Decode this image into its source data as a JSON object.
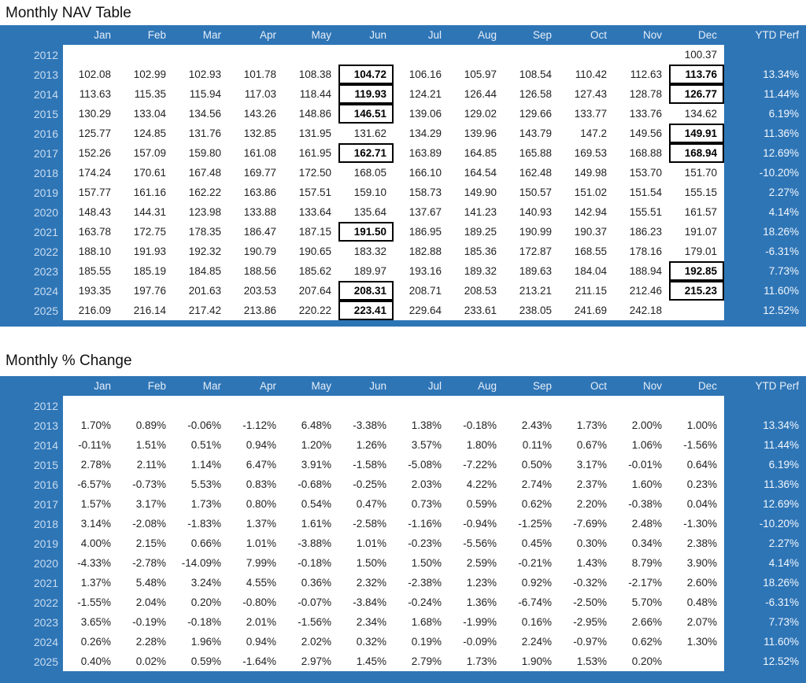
{
  "colors": {
    "accent_blue": "#2E75B6",
    "header_text": "#E6EEF7",
    "year_text": "#C8DCEF",
    "ytd_text": "#F2F7FC",
    "cell_text": "#212121",
    "box_border": "#000000"
  },
  "chart_data": [
    {
      "type": "table",
      "title": "Monthly NAV Table",
      "months": [
        "Jan",
        "Feb",
        "Mar",
        "Apr",
        "May",
        "Jun",
        "Jul",
        "Aug",
        "Sep",
        "Oct",
        "Nov",
        "Dec"
      ],
      "ytd_label": "YTD Perf",
      "rows": [
        {
          "year": "2012",
          "values": [
            "",
            "",
            "",
            "",
            "",
            "",
            "",
            "",
            "",
            "",
            "",
            "100.37"
          ],
          "ytd": "",
          "boxed": []
        },
        {
          "year": "2013",
          "values": [
            "102.08",
            "102.99",
            "102.93",
            "101.78",
            "108.38",
            "104.72",
            "106.16",
            "105.97",
            "108.54",
            "110.42",
            "112.63",
            "113.76"
          ],
          "ytd": "13.34%",
          "boxed": [
            5,
            11
          ]
        },
        {
          "year": "2014",
          "values": [
            "113.63",
            "115.35",
            "115.94",
            "117.03",
            "118.44",
            "119.93",
            "124.21",
            "126.44",
            "126.58",
            "127.43",
            "128.78",
            "126.77"
          ],
          "ytd": "11.44%",
          "boxed": [
            5,
            11
          ]
        },
        {
          "year": "2015",
          "values": [
            "130.29",
            "133.04",
            "134.56",
            "143.26",
            "148.86",
            "146.51",
            "139.06",
            "129.02",
            "129.66",
            "133.77",
            "133.76",
            "134.62"
          ],
          "ytd": "6.19%",
          "boxed": [
            5
          ]
        },
        {
          "year": "2016",
          "values": [
            "125.77",
            "124.85",
            "131.76",
            "132.85",
            "131.95",
            "131.62",
            "134.29",
            "139.96",
            "143.79",
            "147.2",
            "149.56",
            "149.91"
          ],
          "ytd": "11.36%",
          "boxed": [
            11
          ]
        },
        {
          "year": "2017",
          "values": [
            "152.26",
            "157.09",
            "159.80",
            "161.08",
            "161.95",
            "162.71",
            "163.89",
            "164.85",
            "165.88",
            "169.53",
            "168.88",
            "168.94"
          ],
          "ytd": "12.69%",
          "boxed": [
            5,
            11
          ]
        },
        {
          "year": "2018",
          "values": [
            "174.24",
            "170.61",
            "167.48",
            "169.77",
            "172.50",
            "168.05",
            "166.10",
            "164.54",
            "162.48",
            "149.98",
            "153.70",
            "151.70"
          ],
          "ytd": "-10.20%",
          "boxed": []
        },
        {
          "year": "2019",
          "values": [
            "157.77",
            "161.16",
            "162.22",
            "163.86",
            "157.51",
            "159.10",
            "158.73",
            "149.90",
            "150.57",
            "151.02",
            "151.54",
            "155.15"
          ],
          "ytd": "2.27%",
          "boxed": []
        },
        {
          "year": "2020",
          "values": [
            "148.43",
            "144.31",
            "123.98",
            "133.88",
            "133.64",
            "135.64",
            "137.67",
            "141.23",
            "140.93",
            "142.94",
            "155.51",
            "161.57"
          ],
          "ytd": "4.14%",
          "boxed": []
        },
        {
          "year": "2021",
          "values": [
            "163.78",
            "172.75",
            "178.35",
            "186.47",
            "187.15",
            "191.50",
            "186.95",
            "189.25",
            "190.99",
            "190.37",
            "186.23",
            "191.07"
          ],
          "ytd": "18.26%",
          "boxed": [
            5
          ]
        },
        {
          "year": "2022",
          "values": [
            "188.10",
            "191.93",
            "192.32",
            "190.79",
            "190.65",
            "183.32",
            "182.88",
            "185.36",
            "172.87",
            "168.55",
            "178.16",
            "179.01"
          ],
          "ytd": "-6.31%",
          "boxed": []
        },
        {
          "year": "2023",
          "values": [
            "185.55",
            "185.19",
            "184.85",
            "188.56",
            "185.62",
            "189.97",
            "193.16",
            "189.32",
            "189.63",
            "184.04",
            "188.94",
            "192.85"
          ],
          "ytd": "7.73%",
          "boxed": [
            11
          ]
        },
        {
          "year": "2024",
          "values": [
            "193.35",
            "197.76",
            "201.63",
            "203.53",
            "207.64",
            "208.31",
            "208.71",
            "208.53",
            "213.21",
            "211.15",
            "212.46",
            "215.23"
          ],
          "ytd": "11.60%",
          "boxed": [
            5,
            11
          ]
        },
        {
          "year": "2025",
          "values": [
            "216.09",
            "216.14",
            "217.42",
            "213.86",
            "220.22",
            "223.41",
            "229.64",
            "233.61",
            "238.05",
            "241.69",
            "242.18",
            ""
          ],
          "ytd": "12.52%",
          "boxed": [
            5
          ]
        }
      ]
    },
    {
      "type": "table",
      "title": "Monthly % Change",
      "months": [
        "Jan",
        "Feb",
        "Mar",
        "Apr",
        "May",
        "Jun",
        "Jul",
        "Aug",
        "Sep",
        "Oct",
        "Nov",
        "Dec"
      ],
      "ytd_label": "YTD Perf",
      "rows": [
        {
          "year": "2012",
          "values": [
            "",
            "",
            "",
            "",
            "",
            "",
            "",
            "",
            "",
            "",
            "",
            ""
          ],
          "ytd": "",
          "boxed": []
        },
        {
          "year": "2013",
          "values": [
            "1.70%",
            "0.89%",
            "-0.06%",
            "-1.12%",
            "6.48%",
            "-3.38%",
            "1.38%",
            "-0.18%",
            "2.43%",
            "1.73%",
            "2.00%",
            "1.00%"
          ],
          "ytd": "13.34%",
          "boxed": []
        },
        {
          "year": "2014",
          "values": [
            "-0.11%",
            "1.51%",
            "0.51%",
            "0.94%",
            "1.20%",
            "1.26%",
            "3.57%",
            "1.80%",
            "0.11%",
            "0.67%",
            "1.06%",
            "-1.56%"
          ],
          "ytd": "11.44%",
          "boxed": []
        },
        {
          "year": "2015",
          "values": [
            "2.78%",
            "2.11%",
            "1.14%",
            "6.47%",
            "3.91%",
            "-1.58%",
            "-5.08%",
            "-7.22%",
            "0.50%",
            "3.17%",
            "-0.01%",
            "0.64%"
          ],
          "ytd": "6.19%",
          "boxed": []
        },
        {
          "year": "2016",
          "values": [
            "-6.57%",
            "-0.73%",
            "5.53%",
            "0.83%",
            "-0.68%",
            "-0.25%",
            "2.03%",
            "4.22%",
            "2.74%",
            "2.37%",
            "1.60%",
            "0.23%"
          ],
          "ytd": "11.36%",
          "boxed": []
        },
        {
          "year": "2017",
          "values": [
            "1.57%",
            "3.17%",
            "1.73%",
            "0.80%",
            "0.54%",
            "0.47%",
            "0.73%",
            "0.59%",
            "0.62%",
            "2.20%",
            "-0.38%",
            "0.04%"
          ],
          "ytd": "12.69%",
          "boxed": []
        },
        {
          "year": "2018",
          "values": [
            "3.14%",
            "-2.08%",
            "-1.83%",
            "1.37%",
            "1.61%",
            "-2.58%",
            "-1.16%",
            "-0.94%",
            "-1.25%",
            "-7.69%",
            "2.48%",
            "-1.30%"
          ],
          "ytd": "-10.20%",
          "boxed": []
        },
        {
          "year": "2019",
          "values": [
            "4.00%",
            "2.15%",
            "0.66%",
            "1.01%",
            "-3.88%",
            "1.01%",
            "-0.23%",
            "-5.56%",
            "0.45%",
            "0.30%",
            "0.34%",
            "2.38%"
          ],
          "ytd": "2.27%",
          "boxed": []
        },
        {
          "year": "2020",
          "values": [
            "-4.33%",
            "-2.78%",
            "-14.09%",
            "7.99%",
            "-0.18%",
            "1.50%",
            "1.50%",
            "2.59%",
            "-0.21%",
            "1.43%",
            "8.79%",
            "3.90%"
          ],
          "ytd": "4.14%",
          "boxed": []
        },
        {
          "year": "2021",
          "values": [
            "1.37%",
            "5.48%",
            "3.24%",
            "4.55%",
            "0.36%",
            "2.32%",
            "-2.38%",
            "1.23%",
            "0.92%",
            "-0.32%",
            "-2.17%",
            "2.60%"
          ],
          "ytd": "18.26%",
          "boxed": []
        },
        {
          "year": "2022",
          "values": [
            "-1.55%",
            "2.04%",
            "0.20%",
            "-0.80%",
            "-0.07%",
            "-3.84%",
            "-0.24%",
            "1.36%",
            "-6.74%",
            "-2.50%",
            "5.70%",
            "0.48%"
          ],
          "ytd": "-6.31%",
          "boxed": []
        },
        {
          "year": "2023",
          "values": [
            "3.65%",
            "-0.19%",
            "-0.18%",
            "2.01%",
            "-1.56%",
            "2.34%",
            "1.68%",
            "-1.99%",
            "0.16%",
            "-2.95%",
            "2.66%",
            "2.07%"
          ],
          "ytd": "7.73%",
          "boxed": []
        },
        {
          "year": "2024",
          "values": [
            "0.26%",
            "2.28%",
            "1.96%",
            "0.94%",
            "2.02%",
            "0.32%",
            "0.19%",
            "-0.09%",
            "2.24%",
            "-0.97%",
            "0.62%",
            "1.30%"
          ],
          "ytd": "11.60%",
          "boxed": []
        },
        {
          "year": "2025",
          "values": [
            "0.40%",
            "0.02%",
            "0.59%",
            "-1.64%",
            "2.97%",
            "1.45%",
            "2.79%",
            "1.73%",
            "1.90%",
            "1.53%",
            "0.20%",
            ""
          ],
          "ytd": "12.52%",
          "boxed": []
        }
      ]
    }
  ]
}
